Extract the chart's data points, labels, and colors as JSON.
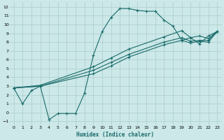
{
  "xlabel": "Humidex (Indice chaleur)",
  "bg_color": "#cce8e8",
  "grid_color": "#aacccc",
  "line_color": "#1a6b6b",
  "xlim": [
    -0.5,
    23.5
  ],
  "ylim": [
    -1.5,
    12.5
  ],
  "xticks": [
    0,
    1,
    2,
    3,
    4,
    5,
    6,
    7,
    8,
    9,
    10,
    11,
    12,
    13,
    14,
    15,
    16,
    17,
    18,
    19,
    20,
    21,
    22,
    23
  ],
  "yticks": [
    -1,
    0,
    1,
    2,
    3,
    4,
    5,
    6,
    7,
    8,
    9,
    10,
    11,
    12
  ],
  "series1_x": [
    0,
    1,
    2,
    3,
    4,
    5,
    6,
    7,
    8,
    9,
    10,
    11,
    12,
    13,
    14,
    15,
    16,
    17,
    18,
    19,
    20,
    21,
    22,
    23
  ],
  "series1_y": [
    2.8,
    1.0,
    2.5,
    3.0,
    -0.8,
    -0.1,
    -0.1,
    -0.1,
    2.2,
    6.5,
    9.2,
    10.8,
    11.8,
    11.8,
    11.6,
    11.5,
    11.5,
    10.5,
    9.8,
    8.2,
    8.5,
    7.8,
    8.7,
    9.2
  ],
  "series2_x": [
    0,
    3,
    9,
    11,
    13,
    17,
    19,
    20,
    21,
    22,
    23
  ],
  "series2_y": [
    2.8,
    3.1,
    5.2,
    6.2,
    7.2,
    8.6,
    9.3,
    8.5,
    8.7,
    8.4,
    9.2
  ],
  "series3_x": [
    0,
    3,
    9,
    11,
    13,
    17,
    19,
    20,
    21,
    22,
    23
  ],
  "series3_y": [
    2.8,
    3.0,
    4.8,
    5.7,
    6.6,
    8.0,
    8.5,
    8.1,
    8.2,
    8.2,
    9.2
  ],
  "series4_x": [
    0,
    3,
    9,
    11,
    13,
    17,
    19,
    20,
    21,
    22,
    23
  ],
  "series4_y": [
    2.8,
    3.0,
    4.4,
    5.3,
    6.3,
    7.7,
    8.2,
    7.9,
    8.1,
    8.0,
    9.2
  ]
}
